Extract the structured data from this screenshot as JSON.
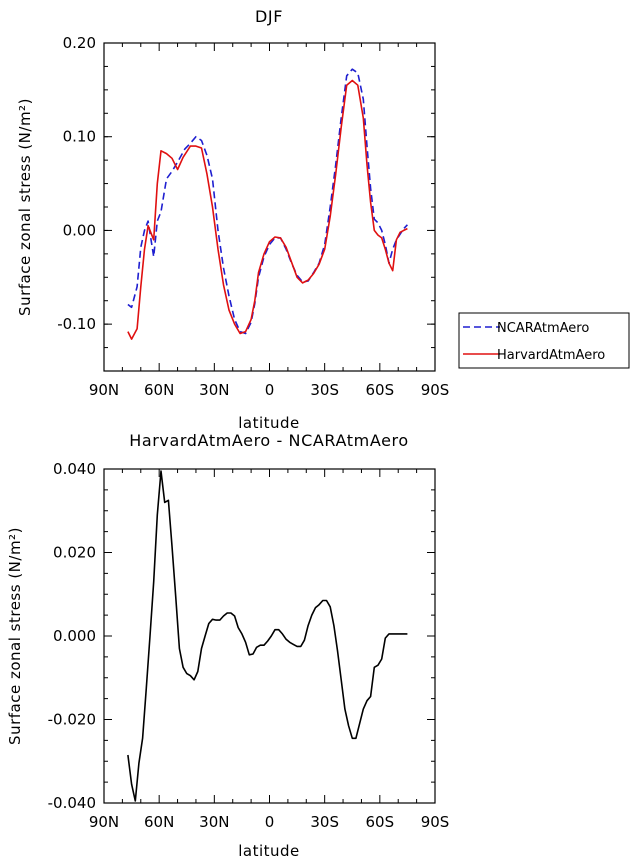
{
  "chart_data": [
    {
      "type": "line",
      "title": "DJF",
      "xlabel": "latitude",
      "ylabel": "Surface zonal stress (N/m²)",
      "xlim": [
        -90,
        90
      ],
      "ylim": [
        -0.15,
        0.2
      ],
      "x_tick_values": [
        -90,
        -60,
        -30,
        0,
        30,
        60,
        90
      ],
      "x_tick_labels": [
        "90N",
        "60N",
        "30N",
        "0",
        "30S",
        "60S",
        "90S"
      ],
      "y_tick_values": [
        0.2,
        0.1,
        0.0,
        -0.1
      ],
      "y_tick_labels": [
        "0.20",
        "0.10",
        "0.00",
        "-0.10"
      ],
      "legend_position": "right",
      "series": [
        {
          "name": "NCARAtmAero",
          "color": "#1f1fd0",
          "dash": "dashed",
          "x": [
            -77,
            -75,
            -72,
            -70,
            -68,
            -66,
            -63,
            -61,
            -59,
            -56,
            -53,
            -50,
            -46,
            -43,
            -40,
            -37,
            -34,
            -31,
            -28,
            -25,
            -22,
            -19,
            -16,
            -13,
            -10,
            -8,
            -6,
            -3,
            0,
            3,
            6,
            9,
            12,
            15,
            18,
            21,
            24,
            27,
            30,
            33,
            36,
            39,
            42,
            45,
            48,
            51,
            53,
            55,
            57,
            59,
            61,
            63,
            65,
            67,
            69,
            71,
            73,
            75
          ],
          "y": [
            -0.079,
            -0.082,
            -0.06,
            -0.018,
            0.0,
            0.01,
            -0.028,
            0.01,
            0.02,
            0.055,
            0.063,
            0.073,
            0.087,
            0.093,
            0.1,
            0.096,
            0.08,
            0.055,
            0.0,
            -0.04,
            -0.07,
            -0.095,
            -0.108,
            -0.11,
            -0.098,
            -0.078,
            -0.05,
            -0.028,
            -0.015,
            -0.008,
            -0.008,
            -0.02,
            -0.035,
            -0.048,
            -0.055,
            -0.054,
            -0.045,
            -0.035,
            -0.015,
            0.025,
            0.07,
            0.12,
            0.165,
            0.172,
            0.168,
            0.14,
            0.09,
            0.045,
            0.012,
            0.008,
            0.0,
            -0.015,
            -0.035,
            -0.02,
            -0.01,
            -0.004,
            0.002,
            0.006
          ]
        },
        {
          "name": "HarvardAtmAero",
          "color": "#e01010",
          "dash": "solid",
          "x": [
            -77,
            -75,
            -72,
            -70,
            -68,
            -66,
            -63,
            -61,
            -59,
            -56,
            -53,
            -50,
            -47,
            -43,
            -40,
            -37,
            -34,
            -31,
            -28,
            -25,
            -22,
            -19,
            -16,
            -13,
            -10,
            -8,
            -6,
            -3,
            0,
            3,
            6,
            9,
            12,
            15,
            18,
            21,
            24,
            27,
            30,
            33,
            36,
            39,
            42,
            45,
            48,
            51,
            53,
            55,
            57,
            59,
            61,
            63,
            65,
            67,
            69,
            71,
            73,
            75
          ],
          "y": [
            -0.108,
            -0.116,
            -0.105,
            -0.06,
            -0.02,
            0.005,
            -0.01,
            0.05,
            0.085,
            0.082,
            0.077,
            0.065,
            0.078,
            0.09,
            0.09,
            0.088,
            0.06,
            0.025,
            -0.02,
            -0.058,
            -0.085,
            -0.1,
            -0.11,
            -0.108,
            -0.095,
            -0.075,
            -0.045,
            -0.025,
            -0.012,
            -0.007,
            -0.008,
            -0.018,
            -0.034,
            -0.05,
            -0.056,
            -0.053,
            -0.046,
            -0.036,
            -0.02,
            0.015,
            0.06,
            0.11,
            0.155,
            0.16,
            0.155,
            0.12,
            0.07,
            0.03,
            0.0,
            -0.005,
            -0.008,
            -0.02,
            -0.035,
            -0.043,
            -0.01,
            -0.002,
            0.0,
            0.002
          ]
        }
      ]
    },
    {
      "type": "line",
      "title": "HarvardAtmAero - NCARAtmAero",
      "xlabel": "latitude",
      "ylabel": "Surface zonal stress (N/m²)",
      "xlim": [
        -90,
        90
      ],
      "ylim": [
        -0.04,
        0.04
      ],
      "x_tick_values": [
        -90,
        -60,
        -30,
        0,
        30,
        60,
        90
      ],
      "x_tick_labels": [
        "90N",
        "60N",
        "30N",
        "0",
        "30S",
        "60S",
        "90S"
      ],
      "y_tick_values": [
        0.04,
        0.02,
        0.0,
        -0.02,
        -0.04
      ],
      "y_tick_labels": [
        "0.040",
        "0.020",
        "0.000",
        "-0.020",
        "-0.040"
      ],
      "series": [
        {
          "color": "#000000",
          "dash": "solid",
          "x": [
            -77,
            -75,
            -73,
            -71,
            -69,
            -67,
            -65,
            -63,
            -61,
            -59,
            -57,
            -55,
            -53,
            -51,
            -49,
            -47,
            -45,
            -43,
            -41,
            -39,
            -37,
            -35,
            -33,
            -31,
            -29,
            -27,
            -25,
            -23,
            -21,
            -19,
            -17,
            -15,
            -13,
            -11,
            -9,
            -7,
            -5,
            -3,
            -1,
            1,
            3,
            5,
            7,
            9,
            11,
            13,
            15,
            17,
            19,
            21,
            23,
            25,
            27,
            29,
            31,
            33,
            35,
            37,
            39,
            41,
            43,
            45,
            47,
            49,
            51,
            53,
            55,
            57,
            59,
            61,
            63,
            65,
            67,
            69,
            71,
            73,
            75
          ],
          "y": [
            -0.0285,
            -0.0355,
            -0.0395,
            -0.0305,
            -0.0245,
            -0.0125,
            0.0,
            0.013,
            0.029,
            0.0395,
            0.032,
            0.0325,
            0.0215,
            0.0095,
            -0.003,
            -0.0075,
            -0.009,
            -0.0095,
            -0.0105,
            -0.0085,
            -0.003,
            0.0,
            0.003,
            0.004,
            0.0038,
            0.0038,
            0.0048,
            0.0055,
            0.0055,
            0.0048,
            0.002,
            0.0005,
            -0.0015,
            -0.0045,
            -0.0043,
            -0.0027,
            -0.0022,
            -0.0022,
            -0.0012,
            0.0,
            0.0015,
            0.0015,
            0.0005,
            -0.0008,
            -0.0015,
            -0.002,
            -0.0025,
            -0.0025,
            -0.001,
            0.0025,
            0.005,
            0.0068,
            0.0075,
            0.0085,
            0.0085,
            0.007,
            0.0025,
            -0.0035,
            -0.0105,
            -0.0175,
            -0.0215,
            -0.0245,
            -0.0245,
            -0.021,
            -0.0175,
            -0.0155,
            -0.0145,
            -0.0075,
            -0.007,
            -0.0055,
            -0.0005,
            0.0005,
            0.0005,
            0.0005,
            0.0005,
            0.0005,
            0.0005
          ]
        }
      ]
    }
  ]
}
